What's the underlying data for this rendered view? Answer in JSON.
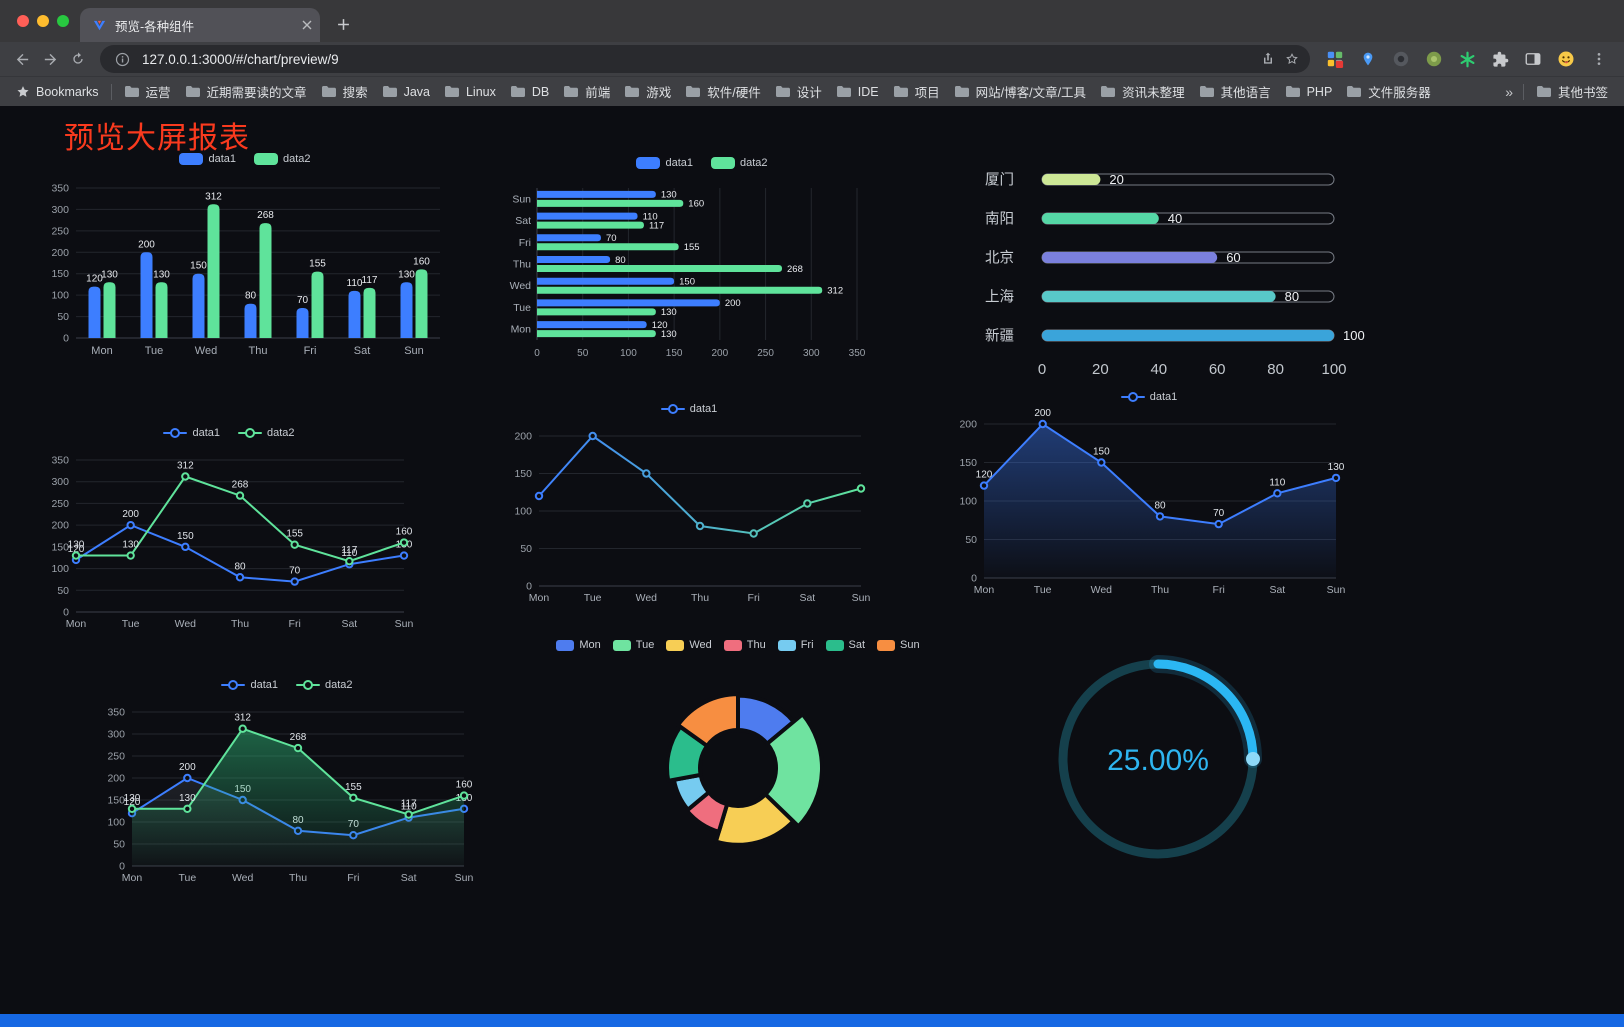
{
  "browser": {
    "tab_title": "预览-各种组件",
    "url": "127.0.0.1:3000/#/chart/preview/9",
    "bookmarks_bar": {
      "root_label": "Bookmarks",
      "items": [
        "运营",
        "近期需要读的文章",
        "搜索",
        "Java",
        "Linux",
        "DB",
        "前端",
        "游戏",
        "软件/硬件",
        "设计",
        "IDE",
        "项目",
        "网站/博客/文章/工具",
        "资讯未整理",
        "其他语言",
        "PHP",
        "文件服务器"
      ],
      "overflow": "»",
      "other_label": "其他书签"
    }
  },
  "page": {
    "title": "预览大屏报表"
  },
  "chart_data": [
    {
      "id": "c1",
      "name": "grouped-bar",
      "type": "bar",
      "categories": [
        "Mon",
        "Tue",
        "Wed",
        "Thu",
        "Fri",
        "Sat",
        "Sun"
      ],
      "series": [
        {
          "name": "data1",
          "color": "#3D7EFF",
          "values": [
            120,
            200,
            150,
            80,
            70,
            110,
            130
          ]
        },
        {
          "name": "data2",
          "color": "#5FE39B",
          "values": [
            130,
            130,
            312,
            268,
            155,
            117,
            160
          ]
        }
      ],
      "ylim": [
        0,
        350
      ],
      "ytick": 50,
      "value_labels": true,
      "legend_position": "top"
    },
    {
      "id": "c2",
      "name": "horizontal-grouped-bar",
      "type": "hbar",
      "categories": [
        "Mon",
        "Tue",
        "Wed",
        "Thu",
        "Fri",
        "Sat",
        "Sun"
      ],
      "category_order_top_to_bottom": [
        "Sun",
        "Sat",
        "Fri",
        "Thu",
        "Wed",
        "Tue",
        "Mon"
      ],
      "series": [
        {
          "name": "data1",
          "color": "#3D7EFF",
          "values": [
            120,
            200,
            150,
            80,
            70,
            110,
            130
          ]
        },
        {
          "name": "data2",
          "color": "#5FE39B",
          "values": [
            130,
            130,
            312,
            268,
            155,
            117,
            160
          ]
        }
      ],
      "xlim": [
        0,
        350
      ],
      "xtick": 50,
      "value_labels": true,
      "legend_position": "top"
    },
    {
      "id": "c3",
      "name": "capsule-progress",
      "type": "capsule",
      "categories": [
        "厦门",
        "南阳",
        "北京",
        "上海",
        "新疆"
      ],
      "values": [
        20,
        40,
        60,
        80,
        100
      ],
      "colors": [
        "#CDE796",
        "#55D7A6",
        "#7B80DD",
        "#58C8C8",
        "#3AA4DA"
      ],
      "xlim": [
        0,
        100
      ],
      "xticks": [
        0,
        20,
        40,
        60,
        80,
        100
      ]
    },
    {
      "id": "c4",
      "name": "two-series-line",
      "type": "line",
      "categories": [
        "Mon",
        "Tue",
        "Wed",
        "Thu",
        "Fri",
        "Sat",
        "Sun"
      ],
      "series": [
        {
          "name": "data1",
          "color": "#3D7EFF",
          "values": [
            120,
            200,
            150,
            80,
            70,
            110,
            130
          ]
        },
        {
          "name": "data2",
          "color": "#5FE39B",
          "values": [
            130,
            130,
            312,
            268,
            155,
            117,
            160
          ]
        }
      ],
      "ylim": [
        0,
        350
      ],
      "ytick": 50,
      "value_labels": true,
      "legend_position": "top"
    },
    {
      "id": "c5",
      "name": "gradient-line",
      "type": "line",
      "categories": [
        "Mon",
        "Tue",
        "Wed",
        "Thu",
        "Fri",
        "Sat",
        "Sun"
      ],
      "series": [
        {
          "name": "data1",
          "color": "#3D7EFF",
          "color_end": "#5FE39B",
          "values": [
            120,
            200,
            150,
            80,
            70,
            110,
            130
          ]
        }
      ],
      "ylim": [
        0,
        200
      ],
      "ytick": 50,
      "value_labels": false,
      "legend_position": "top"
    },
    {
      "id": "c6",
      "name": "area-line",
      "type": "line",
      "categories": [
        "Mon",
        "Tue",
        "Wed",
        "Thu",
        "Fri",
        "Sat",
        "Sun"
      ],
      "series": [
        {
          "name": "data1",
          "color": "#3D7EFF",
          "area": true,
          "area_color": "#3D7EFF",
          "area_opacity": 0.42,
          "values": [
            120,
            200,
            150,
            80,
            70,
            110,
            130
          ]
        }
      ],
      "ylim": [
        0,
        200
      ],
      "ytick": 50,
      "value_labels": true,
      "legend_position": "top"
    },
    {
      "id": "c7",
      "name": "two-series-area-line",
      "type": "line",
      "categories": [
        "Mon",
        "Tue",
        "Wed",
        "Thu",
        "Fri",
        "Sat",
        "Sun"
      ],
      "series": [
        {
          "name": "data1",
          "color": "#3D7EFF",
          "area": true,
          "area_color": "#8E99A6",
          "area_opacity": 0.14,
          "values": [
            120,
            200,
            150,
            80,
            70,
            110,
            130
          ]
        },
        {
          "name": "data2",
          "color": "#5FE39B",
          "area": true,
          "area_color": "#2FB878",
          "area_opacity": 0.5,
          "values": [
            130,
            130,
            312,
            268,
            155,
            117,
            160
          ]
        }
      ],
      "ylim": [
        0,
        350
      ],
      "ytick": 50,
      "value_labels": true,
      "legend_position": "top"
    },
    {
      "id": "c8",
      "name": "rose-donut",
      "type": "pie",
      "rose": true,
      "categories": [
        "Mon",
        "Tue",
        "Wed",
        "Thu",
        "Fri",
        "Sat",
        "Sun"
      ],
      "values": [
        120,
        200,
        150,
        80,
        70,
        110,
        130
      ],
      "colors": [
        "#4E7CEF",
        "#6FE3A0",
        "#F7CE55",
        "#EF6E7E",
        "#76CBF0",
        "#2BBD8C",
        "#F78E41"
      ],
      "legend_position": "top"
    },
    {
      "id": "c9",
      "name": "progress-ring",
      "type": "gauge",
      "value": 25,
      "label": "25.00%",
      "color": "#2BB7F3",
      "track_color": "#15404C"
    }
  ]
}
